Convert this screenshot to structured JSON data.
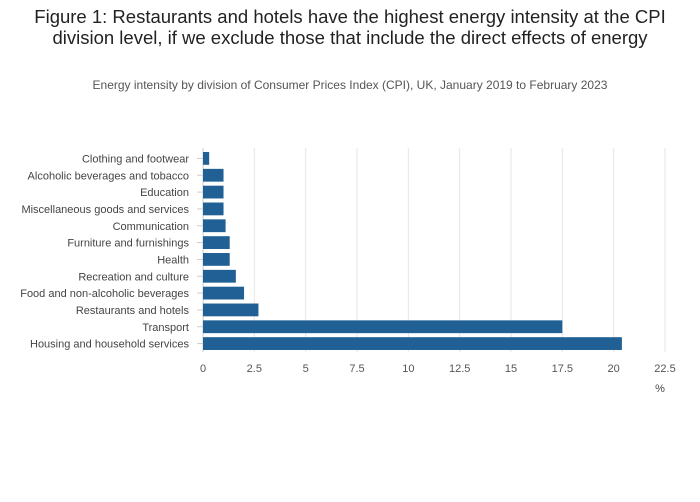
{
  "chart_data": {
    "type": "bar",
    "orientation": "horizontal",
    "title": "Figure 1: Restaurants and hotels have the highest energy intensity at the CPI division level, if we exclude those that include the direct effects of energy",
    "subtitle": "Energy intensity by division of Consumer Prices Index (CPI), UK, January 2019 to February 2023",
    "xlabel": "%",
    "ylabel": "",
    "xlim": [
      0,
      22.5
    ],
    "xticks": [
      "0",
      "2.5",
      "5",
      "7.5",
      "10",
      "12.5",
      "15",
      "17.5",
      "20",
      "22.5"
    ],
    "grid": true,
    "bar_color": "#206095",
    "categories": [
      "Clothing and footwear",
      "Alcoholic beverages and tobacco",
      "Education",
      "Miscellaneous goods and services",
      "Communication",
      "Furniture and furnishings",
      "Health",
      "Recreation and culture",
      "Food and non-alcoholic beverages",
      "Restaurants and hotels",
      "Transport",
      "Housing and household services"
    ],
    "values": [
      0.3,
      1.0,
      1.0,
      1.0,
      1.1,
      1.3,
      1.3,
      1.6,
      2.0,
      2.7,
      17.5,
      20.4
    ]
  }
}
